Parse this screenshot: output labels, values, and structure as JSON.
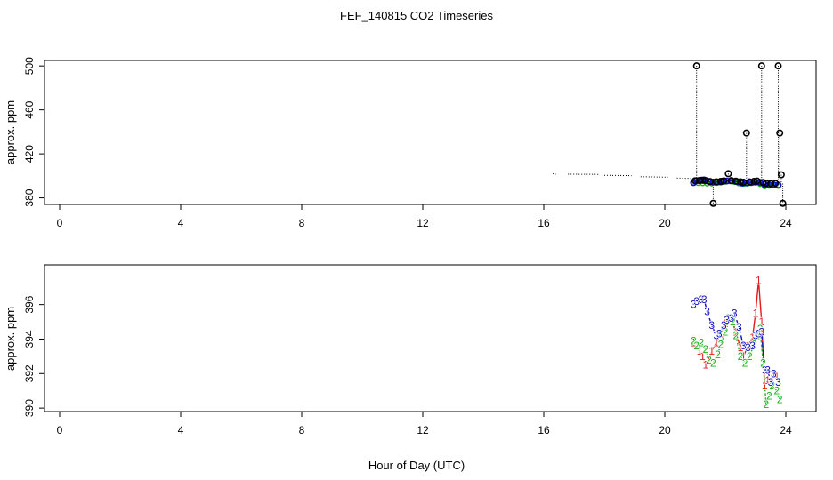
{
  "title": "FEF_140815  CO2 Timeseries",
  "xlabel": "Hour of Day (UTC)",
  "colors": {
    "s1": "#e31a1c",
    "s2": "#1ab21a",
    "s3": "#1010c0",
    "raw": "#000000"
  },
  "chart_data": [
    {
      "type": "line",
      "ylabel": "approx. ppm",
      "xlim": [
        -0.5,
        25
      ],
      "ylim": [
        374,
        505
      ],
      "xticks": [
        0,
        4,
        8,
        12,
        16,
        20,
        24
      ],
      "yticks": [
        380,
        420,
        460,
        500
      ],
      "raw_segments": [
        [
          [
            16.3,
            402.0
          ],
          [
            16.4,
            401.5
          ]
        ],
        [
          [
            16.8,
            401.5
          ],
          [
            17.8,
            401.3
          ]
        ],
        [
          [
            18.0,
            400.5
          ],
          [
            18.9,
            400.2
          ]
        ],
        [
          [
            19.2,
            399.2
          ],
          [
            20.1,
            398.8
          ]
        ],
        [
          [
            20.4,
            398.0
          ],
          [
            21.0,
            397.5
          ]
        ]
      ],
      "spikes": [
        {
          "x": 21.05,
          "top": 500,
          "bottom": 394
        },
        {
          "x": 21.6,
          "top": 394,
          "bottom": 375
        },
        {
          "x": 22.1,
          "top": 402,
          "bottom": 395
        },
        {
          "x": 22.7,
          "top": 439,
          "bottom": 394
        },
        {
          "x": 23.2,
          "top": 500,
          "bottom": 394
        },
        {
          "x": 23.75,
          "top": 500,
          "bottom": 393
        },
        {
          "x": 23.8,
          "top": 439,
          "bottom": 393
        },
        {
          "x": 23.85,
          "top": 401,
          "bottom": 393
        },
        {
          "x": 23.9,
          "top": 393,
          "bottom": 375
        }
      ],
      "circles": [
        [
          21.0,
          395.5
        ],
        [
          21.05,
          500
        ],
        [
          21.15,
          395.8
        ],
        [
          21.25,
          396
        ],
        [
          21.35,
          395.7
        ],
        [
          21.5,
          394.8
        ],
        [
          21.6,
          375
        ],
        [
          21.7,
          394.6
        ],
        [
          21.85,
          395
        ],
        [
          21.95,
          395.4
        ],
        [
          22.1,
          402
        ],
        [
          22.2,
          395.7
        ],
        [
          22.35,
          395.2
        ],
        [
          22.5,
          394.6
        ],
        [
          22.6,
          394.2
        ],
        [
          22.7,
          439
        ],
        [
          22.8,
          394.5
        ],
        [
          22.95,
          395
        ],
        [
          23.05,
          395.3
        ],
        [
          23.2,
          500
        ],
        [
          23.25,
          394
        ],
        [
          23.35,
          393.3
        ],
        [
          23.5,
          392.9
        ],
        [
          23.65,
          393.2
        ],
        [
          23.75,
          500
        ],
        [
          23.8,
          439
        ],
        [
          23.85,
          401
        ],
        [
          23.9,
          375
        ]
      ],
      "blue_points": [
        [
          20.95,
          393.8
        ],
        [
          21.05,
          395.6
        ],
        [
          21.2,
          396.1
        ],
        [
          21.3,
          396.3
        ],
        [
          21.45,
          395
        ],
        [
          21.6,
          394.3
        ],
        [
          21.75,
          394.4
        ],
        [
          21.9,
          394.9
        ],
        [
          22.05,
          395.3
        ],
        [
          22.2,
          395.5
        ],
        [
          22.4,
          394.6
        ],
        [
          22.55,
          393.4
        ],
        [
          22.7,
          393.5
        ],
        [
          22.85,
          393.9
        ],
        [
          23.0,
          394.3
        ],
        [
          23.15,
          394.1
        ],
        [
          23.3,
          392.3
        ],
        [
          23.45,
          391.7
        ],
        [
          23.6,
          391.9
        ],
        [
          23.75,
          391.6
        ]
      ],
      "green_points": [
        [
          20.95,
          393.6
        ],
        [
          21.1,
          393.4
        ],
        [
          21.25,
          393.2
        ],
        [
          21.4,
          392.9
        ],
        [
          21.55,
          393.0
        ],
        [
          21.7,
          393.4
        ],
        [
          21.85,
          393.8
        ],
        [
          22.0,
          394.6
        ],
        [
          22.15,
          395.0
        ],
        [
          22.3,
          394.4
        ],
        [
          22.45,
          393.1
        ],
        [
          22.6,
          392.6
        ],
        [
          22.75,
          393.0
        ],
        [
          22.9,
          393.5
        ],
        [
          23.05,
          394.1
        ],
        [
          23.15,
          392.5
        ],
        [
          23.3,
          390.4
        ],
        [
          23.45,
          390.9
        ],
        [
          23.6,
          391.3
        ],
        [
          23.75,
          390.8
        ]
      ]
    },
    {
      "type": "line",
      "ylabel": "approx. ppm",
      "xlim": [
        -0.5,
        25
      ],
      "ylim": [
        389.8,
        398.3
      ],
      "xticks": [
        0,
        4,
        8,
        12,
        16,
        20,
        24
      ],
      "yticks": [
        390,
        392,
        394,
        396
      ],
      "series": [
        {
          "label": "1",
          "color": "#e31a1c",
          "points": [
            [
              20.95,
              393.8
            ],
            [
              21.05,
              393.6
            ],
            [
              21.15,
              393.3
            ],
            [
              21.25,
              393.0
            ],
            [
              21.35,
              392.5
            ],
            [
              21.45,
              392.8
            ],
            [
              21.55,
              393.3
            ],
            [
              21.7,
              393.8
            ],
            [
              21.85,
              394.3
            ],
            [
              22.0,
              394.9
            ],
            [
              22.15,
              395.2
            ],
            [
              22.25,
              395.0
            ],
            [
              22.35,
              394.4
            ],
            [
              22.5,
              393.5
            ],
            [
              22.6,
              393.0
            ],
            [
              22.75,
              393.6
            ],
            [
              22.9,
              394.1
            ],
            [
              23.0,
              395.5
            ],
            [
              23.1,
              397.4
            ],
            [
              23.2,
              395.0
            ],
            [
              23.3,
              391.3
            ],
            [
              23.4,
              391.6
            ],
            [
              23.5,
              391.5
            ],
            [
              23.6,
              392.0
            ],
            [
              23.7,
              391.8
            ]
          ]
        },
        {
          "label": "2",
          "color": "#1ab21a",
          "points": [
            [
              20.95,
              393.9
            ],
            [
              21.05,
              393.6
            ],
            [
              21.2,
              393.8
            ],
            [
              21.35,
              393.4
            ],
            [
              21.45,
              392.8
            ],
            [
              21.6,
              392.6
            ],
            [
              21.75,
              393.1
            ],
            [
              21.85,
              393.7
            ],
            [
              22.0,
              394.4
            ],
            [
              22.1,
              395.2
            ],
            [
              22.25,
              395.0
            ],
            [
              22.35,
              394.2
            ],
            [
              22.5,
              393.0
            ],
            [
              22.65,
              392.6
            ],
            [
              22.8,
              393.0
            ],
            [
              22.95,
              393.7
            ],
            [
              23.05,
              394.2
            ],
            [
              23.15,
              394.6
            ],
            [
              23.25,
              392.6
            ],
            [
              23.35,
              390.2
            ],
            [
              23.45,
              390.7
            ],
            [
              23.55,
              391.3
            ],
            [
              23.7,
              391.0
            ],
            [
              23.8,
              390.5
            ]
          ]
        },
        {
          "label": "3",
          "color": "#1010c0",
          "points": [
            [
              20.95,
              396.0
            ],
            [
              21.05,
              396.2
            ],
            [
              21.2,
              396.3
            ],
            [
              21.3,
              396.3
            ],
            [
              21.4,
              395.6
            ],
            [
              21.55,
              394.8
            ],
            [
              21.7,
              394.2
            ],
            [
              21.8,
              394.3
            ],
            [
              21.95,
              394.8
            ],
            [
              22.05,
              395.1
            ],
            [
              22.2,
              395.2
            ],
            [
              22.3,
              395.5
            ],
            [
              22.45,
              394.7
            ],
            [
              22.6,
              393.6
            ],
            [
              22.75,
              393.5
            ],
            [
              22.9,
              393.6
            ],
            [
              23.0,
              394.2
            ],
            [
              23.1,
              394.3
            ],
            [
              23.2,
              394.4
            ],
            [
              23.3,
              392.2
            ],
            [
              23.4,
              392.2
            ],
            [
              23.5,
              391.5
            ],
            [
              23.6,
              392.0
            ],
            [
              23.75,
              391.5
            ]
          ]
        }
      ]
    }
  ]
}
